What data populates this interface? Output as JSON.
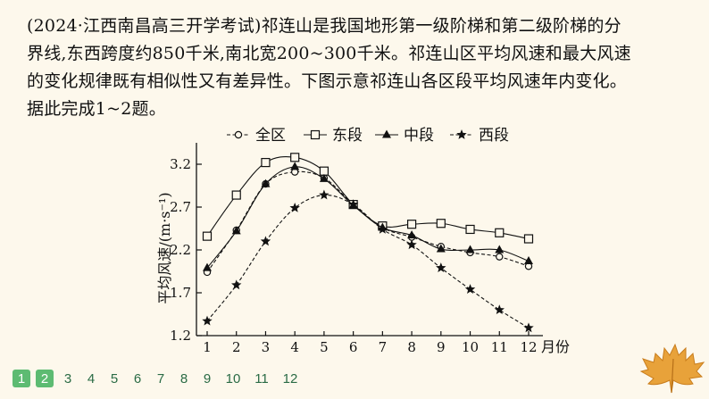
{
  "question": {
    "lines": [
      "(2024·江西南昌高三开学考试)祁连山是我国地形第一级阶梯和第二级阶梯的分",
      "界线,东西跨度约850千米,南北宽200~300千米。祁连山区平均风速和最大风速",
      "的变化规律既有相似性又有差异性。下图示意祁连山各区段平均风速年内变化。",
      "据此完成1~2题。"
    ]
  },
  "pager": {
    "pages": [
      "1",
      "2",
      "3",
      "4",
      "5",
      "6",
      "7",
      "8",
      "9",
      "10",
      "11",
      "12"
    ],
    "active": [
      "1",
      "2"
    ]
  },
  "chart_data": {
    "type": "line",
    "ylabel": "平均风速/(m·s⁻¹)",
    "xlabel_unit": "月份",
    "x": [
      1,
      2,
      3,
      4,
      5,
      6,
      7,
      8,
      9,
      10,
      11,
      12
    ],
    "x_tick_labels": [
      "1",
      "2",
      "3",
      "4",
      "5",
      "6",
      "7",
      "8",
      "9",
      "10",
      "11",
      "12"
    ],
    "y_ticks": [
      1.2,
      1.7,
      2.2,
      2.7,
      3.2
    ],
    "y_tick_labels": [
      "1.2",
      "1.7",
      "2.2",
      "2.7",
      "3.2"
    ],
    "ylim": [
      1.2,
      3.45
    ],
    "legend_position": "top",
    "series": [
      {
        "name": "全区",
        "marker": "circle-open",
        "dash": "dashed",
        "values": [
          1.94,
          2.43,
          2.97,
          3.11,
          3.04,
          2.73,
          2.46,
          2.35,
          2.24,
          2.17,
          2.12,
          2.01
        ]
      },
      {
        "name": "东段",
        "marker": "square-open",
        "dash": "solid",
        "values": [
          2.36,
          2.84,
          3.22,
          3.28,
          3.12,
          2.73,
          2.48,
          2.5,
          2.51,
          2.44,
          2.4,
          2.33
        ]
      },
      {
        "name": "中段",
        "marker": "triangle-filled",
        "dash": "solid",
        "values": [
          1.99,
          2.42,
          2.97,
          3.17,
          3.03,
          2.72,
          2.46,
          2.37,
          2.21,
          2.2,
          2.2,
          2.07
        ]
      },
      {
        "name": "西段",
        "marker": "star-filled",
        "dash": "dashed",
        "values": [
          1.37,
          1.79,
          2.3,
          2.69,
          2.84,
          2.73,
          2.44,
          2.26,
          1.99,
          1.74,
          1.5,
          1.29
        ]
      }
    ]
  },
  "colors": {
    "active_page": "#5dbb72",
    "leaf": "#e8a23a"
  }
}
